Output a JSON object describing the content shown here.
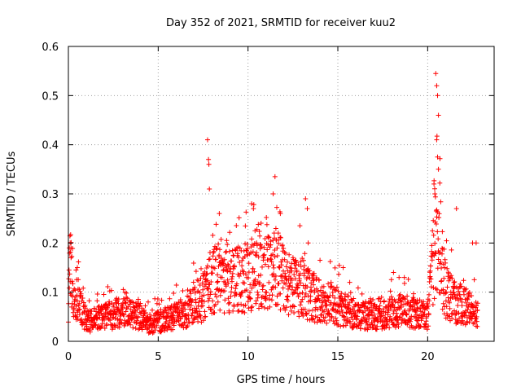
{
  "chart_data": {
    "type": "scatter",
    "title": "Day 352 of 2021, SRMTID for receiver kuu2",
    "xlabel": "GPS time / hours",
    "ylabel": "SRMTID / TECUs",
    "xlim": [
      0,
      23.7
    ],
    "ylim": [
      0,
      0.6
    ],
    "x_ticks": [
      0,
      5,
      10,
      15,
      20
    ],
    "y_ticks": [
      0,
      0.1,
      0.2,
      0.3,
      0.4,
      0.5,
      0.6
    ],
    "x_tick_labels": [
      "0",
      "5",
      "10",
      "15",
      "20"
    ],
    "y_tick_labels": [
      "0",
      "0.1",
      "0.2",
      "0.3",
      "0.4",
      "0.5",
      "0.6"
    ],
    "grid": true,
    "marker": "+",
    "series": [
      {
        "name": "SRMTID",
        "color": "#ff0000",
        "profile": [
          [
            0.0,
            0.08
          ],
          [
            0.1,
            0.15
          ],
          [
            0.3,
            0.09
          ],
          [
            0.6,
            0.08
          ],
          [
            1.0,
            0.04
          ],
          [
            2.0,
            0.05
          ],
          [
            3.0,
            0.06
          ],
          [
            4.0,
            0.05
          ],
          [
            4.5,
            0.035
          ],
          [
            5.0,
            0.04
          ],
          [
            6.0,
            0.05
          ],
          [
            7.0,
            0.07
          ],
          [
            7.5,
            0.09
          ],
          [
            7.8,
            0.12
          ],
          [
            8.2,
            0.13
          ],
          [
            9.0,
            0.12
          ],
          [
            10.0,
            0.13
          ],
          [
            10.5,
            0.15
          ],
          [
            11.0,
            0.14
          ],
          [
            11.5,
            0.15
          ],
          [
            12.0,
            0.13
          ],
          [
            12.5,
            0.11
          ],
          [
            13.0,
            0.11
          ],
          [
            13.5,
            0.09
          ],
          [
            14.0,
            0.08
          ],
          [
            15.0,
            0.07
          ],
          [
            16.0,
            0.055
          ],
          [
            17.0,
            0.05
          ],
          [
            18.0,
            0.06
          ],
          [
            19.0,
            0.06
          ],
          [
            20.0,
            0.05
          ],
          [
            20.2,
            0.12
          ],
          [
            20.4,
            0.2
          ],
          [
            20.6,
            0.18
          ],
          [
            21.0,
            0.1
          ],
          [
            21.5,
            0.08
          ],
          [
            22.0,
            0.075
          ],
          [
            22.5,
            0.06
          ],
          [
            22.8,
            0.05
          ]
        ],
        "highlights": [
          [
            0.05,
            0.19
          ],
          [
            0.1,
            0.2
          ],
          [
            0.15,
            0.17
          ],
          [
            0.5,
            0.15
          ],
          [
            7.75,
            0.41
          ],
          [
            7.8,
            0.37
          ],
          [
            7.82,
            0.36
          ],
          [
            7.85,
            0.31
          ],
          [
            8.4,
            0.26
          ],
          [
            10.2,
            0.28
          ],
          [
            10.3,
            0.27
          ],
          [
            11.5,
            0.335
          ],
          [
            11.4,
            0.3
          ],
          [
            11.8,
            0.26
          ],
          [
            13.2,
            0.29
          ],
          [
            13.3,
            0.27
          ],
          [
            13.35,
            0.2
          ],
          [
            20.35,
            0.32
          ],
          [
            20.4,
            0.3
          ],
          [
            20.45,
            0.545
          ],
          [
            20.5,
            0.52
          ],
          [
            20.55,
            0.5
          ],
          [
            20.6,
            0.46
          ],
          [
            20.5,
            0.41
          ],
          [
            20.55,
            0.375
          ],
          [
            20.6,
            0.35
          ],
          [
            21.6,
            0.27
          ],
          [
            22.5,
            0.2
          ],
          [
            22.7,
            0.2
          ],
          [
            18.7,
            0.13
          ],
          [
            18.1,
            0.14
          ],
          [
            15.3,
            0.15
          ]
        ]
      }
    ]
  }
}
